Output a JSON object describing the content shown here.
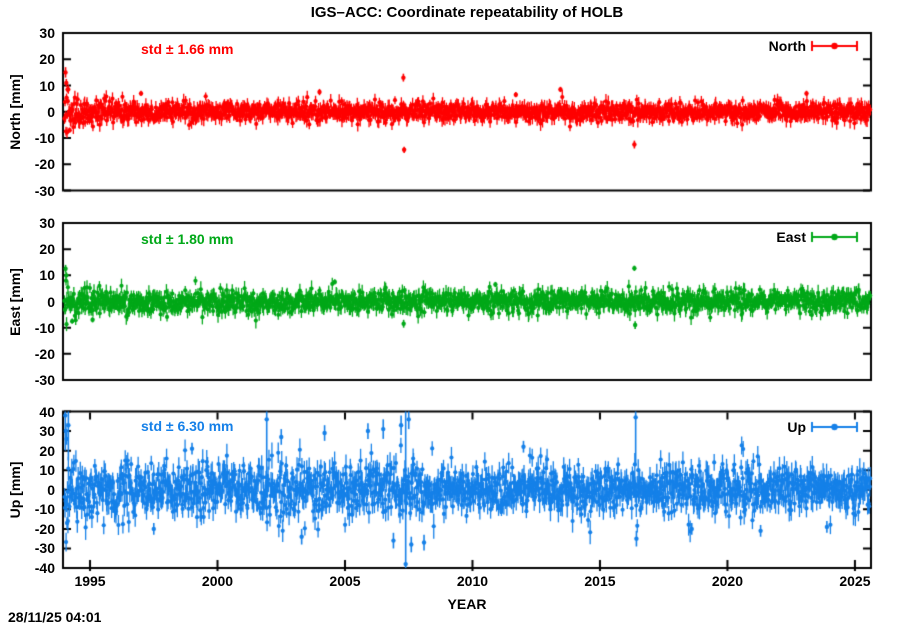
{
  "title": "IGS–ACC: Coordinate repeatability of HOLB",
  "timestamp": "28/11/25 04:01",
  "xlabel": "YEAR",
  "chart_data": {
    "type": "scatter",
    "title": "IGS–ACC: Coordinate repeatability of HOLB",
    "xlabel": "YEAR",
    "xlim": [
      1993.94,
      2025.63
    ],
    "xticks": [
      1995,
      2000,
      2005,
      2010,
      2015,
      2020,
      2025
    ],
    "x_start": 1994.0,
    "x_end": 2025.6,
    "points_per_year": 52,
    "layout": {
      "grid": false,
      "legend": "inside-top-right",
      "marker": "filled-circle-with-errorbars"
    },
    "panels": [
      {
        "name": "North",
        "ylabel": "North [mm]",
        "legend": "North",
        "std_label": "std ± 1.66 mm",
        "std_mm": 1.66,
        "color": "#ff0000",
        "ylim": [
          -30,
          30
        ],
        "yticks": [
          30,
          20,
          10,
          0,
          -10,
          -20,
          -30
        ],
        "gen": {
          "seed": 101,
          "base": 1.7,
          "early_amp": 2.0,
          "early_tau": 1.3,
          "mid_amp": 0,
          "mid_from": 0,
          "mid_to": 0,
          "tail_p": 0.025,
          "tail_mult": 1.8,
          "err": 2.4
        },
        "outliers": [
          {
            "x": 1994.04,
            "y": 15,
            "e": 2.0
          },
          {
            "x": 1994.07,
            "y": 11,
            "e": 1.5
          },
          {
            "x": 1994.12,
            "y": 8.5,
            "e": 1.2
          },
          {
            "x": 1994.2,
            "y": -7,
            "e": 1.0
          },
          {
            "x": 1997.0,
            "y": 7,
            "e": 1.0
          },
          {
            "x": 2004.0,
            "y": 7.5,
            "e": 1.2
          },
          {
            "x": 2007.29,
            "y": 13,
            "e": 1.5
          },
          {
            "x": 2007.32,
            "y": -14.5,
            "e": 1.2
          },
          {
            "x": 2011.7,
            "y": 6.5,
            "e": 1.0
          },
          {
            "x": 2013.45,
            "y": 8.5,
            "e": 1.0
          },
          {
            "x": 2016.35,
            "y": -12.5,
            "e": 1.5
          },
          {
            "x": 2023.1,
            "y": 7,
            "e": 1.0
          }
        ]
      },
      {
        "name": "East",
        "ylabel": "East [mm]",
        "legend": "East",
        "std_label": "std ± 1.80 mm",
        "std_mm": 1.8,
        "color": "#00a818",
        "ylim": [
          -30,
          30
        ],
        "yticks": [
          30,
          20,
          10,
          0,
          -10,
          -20,
          -30
        ],
        "gen": {
          "seed": 202,
          "base": 2.0,
          "early_amp": 2.2,
          "early_tau": 1.3,
          "mid_amp": 0,
          "mid_from": 0,
          "mid_to": 0,
          "tail_p": 0.025,
          "tail_mult": 1.8,
          "err": 2.6
        },
        "outliers": [
          {
            "x": 1994.04,
            "y": 12.5,
            "e": 1.5
          },
          {
            "x": 1994.07,
            "y": 10,
            "e": 1.2
          },
          {
            "x": 1994.3,
            "y": -7.5,
            "e": 1.0
          },
          {
            "x": 1995.1,
            "y": -7,
            "e": 1.0
          },
          {
            "x": 2004.6,
            "y": 7.5,
            "e": 1.0
          },
          {
            "x": 2007.3,
            "y": -8.5,
            "e": 1.5
          },
          {
            "x": 2010.9,
            "y": 6.5,
            "e": 1.0
          },
          {
            "x": 2016.35,
            "y": 12.7,
            "e": 1.0
          },
          {
            "x": 2016.38,
            "y": -9,
            "e": 1.5
          }
        ]
      },
      {
        "name": "Up",
        "ylabel": "Up [mm]",
        "legend": "Up",
        "std_label": "std ± 6.30 mm",
        "std_mm": 6.3,
        "color": "#1580e8",
        "ylim": [
          -40,
          40
        ],
        "yticks": [
          40,
          30,
          20,
          10,
          0,
          -10,
          -20,
          -30,
          -40
        ],
        "gen": {
          "seed": 303,
          "base": 5.3,
          "early_amp": 4.5,
          "early_tau": 2.5,
          "mid_amp": 2.2,
          "mid_from": 2001.5,
          "mid_to": 2008.5,
          "tail_p": 0.035,
          "tail_mult": 2.0,
          "err": 5.5
        },
        "outliers": [
          {
            "x": 1994.03,
            "y": 38,
            "lo": 20,
            "hi": 41
          },
          {
            "x": 1994.05,
            "y": 30,
            "e": 4
          },
          {
            "x": 1994.08,
            "y": 26,
            "e": 3
          },
          {
            "x": 1994.1,
            "y": -17,
            "e": 3
          },
          {
            "x": 1994.15,
            "y": 33,
            "lo": 15,
            "hi": 40
          },
          {
            "x": 1997.5,
            "y": -20,
            "e": 3
          },
          {
            "x": 1999.0,
            "y": 21,
            "e": 3
          },
          {
            "x": 2001.93,
            "y": 36,
            "lo": -4,
            "hi": 40
          },
          {
            "x": 2002.5,
            "y": 27,
            "e": 4
          },
          {
            "x": 2003.3,
            "y": -24,
            "e": 4
          },
          {
            "x": 2004.2,
            "y": 29,
            "e": 4
          },
          {
            "x": 2005.9,
            "y": 30,
            "e": 4
          },
          {
            "x": 2006.5,
            "y": 31,
            "e": 5
          },
          {
            "x": 2006.9,
            "y": -26,
            "e": 4
          },
          {
            "x": 2007.2,
            "y": 33,
            "e": 5
          },
          {
            "x": 2007.38,
            "y": -38,
            "lo": -40,
            "hi": 40
          },
          {
            "x": 2007.5,
            "y": 36,
            "e": 5
          },
          {
            "x": 2007.6,
            "y": -28,
            "e": 4
          },
          {
            "x": 2008.1,
            "y": -27,
            "e": 4
          },
          {
            "x": 2012.0,
            "y": 22,
            "e": 3
          },
          {
            "x": 2016.4,
            "y": 37,
            "lo": 12,
            "hi": 40
          },
          {
            "x": 2016.43,
            "y": -25,
            "e": 4
          },
          {
            "x": 2018.6,
            "y": -20,
            "e": 3
          },
          {
            "x": 2021.3,
            "y": -21,
            "e": 3
          },
          {
            "x": 2023.9,
            "y": -19,
            "e": 3
          }
        ]
      }
    ]
  }
}
